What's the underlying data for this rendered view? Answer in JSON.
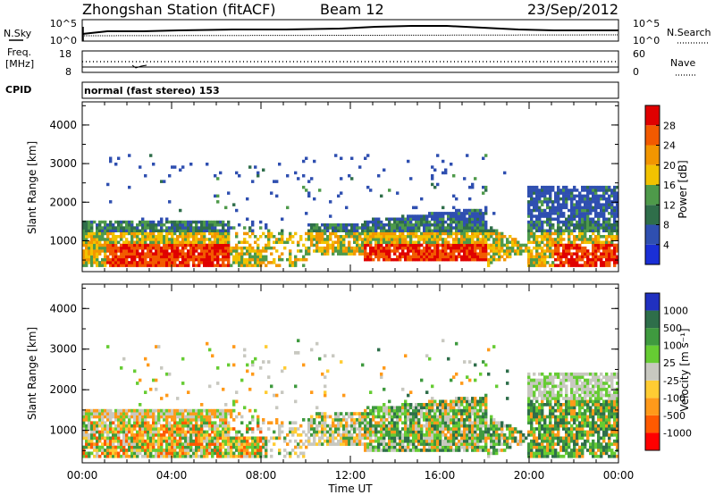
{
  "header": {
    "station": "Zhongshan Station (fitACF)",
    "beam": "Beam 12",
    "date": "23/Sep/2012"
  },
  "top_panel": {
    "nsky_label": "N.Sky",
    "nsky_tick_hi": "10^5",
    "nsky_tick_lo": "10^0",
    "nsearch_label": "N.Search",
    "right_tick_hi": "10^5",
    "right_tick_lo": "10^0"
  },
  "freq_panel": {
    "label_line1": "Freq.",
    "label_line2": "[MHz]",
    "tick_hi": "18",
    "tick_lo": "8",
    "nave_label": "Nave",
    "nave_tick_hi": "60",
    "nave_tick_lo": "0"
  },
  "cpid_panel": {
    "label": "CPID",
    "mode_text": "normal (fast stereo) 153"
  },
  "colors": {
    "power": [
      "#1a2fd6",
      "#2f4fb0",
      "#2f6e4a",
      "#4e9a4a",
      "#f2c200",
      "#f29600",
      "#f25a00",
      "#e00000"
    ],
    "velocity": [
      "#ff0000",
      "#ff5a00",
      "#ff9a1a",
      "#ffcc33",
      "#c8c8c0",
      "#66cc33",
      "#3f9a3f",
      "#2e6e4a",
      "#2030c0"
    ]
  },
  "chart_data": [
    {
      "type": "heatmap",
      "title": "",
      "xlabel": "",
      "ylabel": "Slant Range [km]",
      "xlim": [
        0,
        24
      ],
      "ylim": [
        200,
        4600
      ],
      "yticks": [
        "1000",
        "2000",
        "3000",
        "4000"
      ],
      "colorbar": {
        "label": "Power [dB]",
        "ticks": [
          "4",
          "8",
          "12",
          "16",
          "20",
          "24",
          "28"
        ],
        "range": [
          0,
          32
        ]
      }
    },
    {
      "type": "heatmap",
      "title": "",
      "xlabel": "Time UT",
      "ylabel": "Slant Range [km]",
      "xlim": [
        0,
        24
      ],
      "ylim": [
        200,
        4600
      ],
      "xticks": [
        "00:00",
        "04:00",
        "08:00",
        "12:00",
        "16:00",
        "20:00",
        "00:00"
      ],
      "yticks": [
        "1000",
        "2000",
        "3000",
        "4000"
      ],
      "colorbar": {
        "label": "Velocity [m s⁻¹]",
        "ticks": [
          "1000",
          "500",
          "100",
          "25",
          "-25",
          "-100",
          "-500",
          "-1000"
        ]
      }
    }
  ]
}
